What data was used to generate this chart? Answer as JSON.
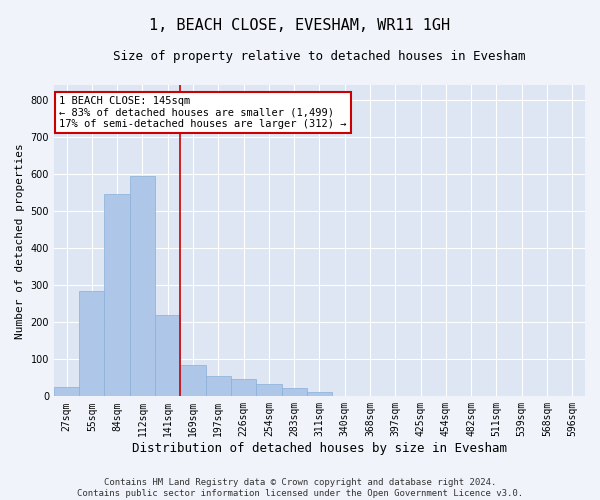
{
  "title": "1, BEACH CLOSE, EVESHAM, WR11 1GH",
  "subtitle": "Size of property relative to detached houses in Evesham",
  "xlabel": "Distribution of detached houses by size in Evesham",
  "ylabel": "Number of detached properties",
  "categories": [
    "27sqm",
    "55sqm",
    "84sqm",
    "112sqm",
    "141sqm",
    "169sqm",
    "197sqm",
    "226sqm",
    "254sqm",
    "283sqm",
    "311sqm",
    "340sqm",
    "368sqm",
    "397sqm",
    "425sqm",
    "454sqm",
    "482sqm",
    "511sqm",
    "539sqm",
    "568sqm",
    "596sqm"
  ],
  "values": [
    25,
    285,
    545,
    595,
    220,
    85,
    55,
    48,
    32,
    22,
    12,
    0,
    0,
    0,
    0,
    0,
    0,
    0,
    0,
    0,
    0
  ],
  "bar_color": "#aec6e8",
  "bar_edge_color": "#8ab0d8",
  "vline_color": "#cc0000",
  "vline_x": 4.5,
  "annotation_text": "1 BEACH CLOSE: 145sqm\n← 83% of detached houses are smaller (1,499)\n17% of semi-detached houses are larger (312) →",
  "annotation_box_color": "#ffffff",
  "annotation_box_edge_color": "#cc0000",
  "footer": "Contains HM Land Registry data © Crown copyright and database right 2024.\nContains public sector information licensed under the Open Government Licence v3.0.",
  "ylim": [
    0,
    840
  ],
  "fig_background": "#f0f4fa",
  "plot_background": "#dde6f2",
  "grid_color": "#ffffff",
  "title_fontsize": 11,
  "subtitle_fontsize": 9,
  "ylabel_fontsize": 8,
  "xlabel_fontsize": 9,
  "tick_fontsize": 7,
  "footer_fontsize": 6.5,
  "annotation_fontsize": 7.5
}
